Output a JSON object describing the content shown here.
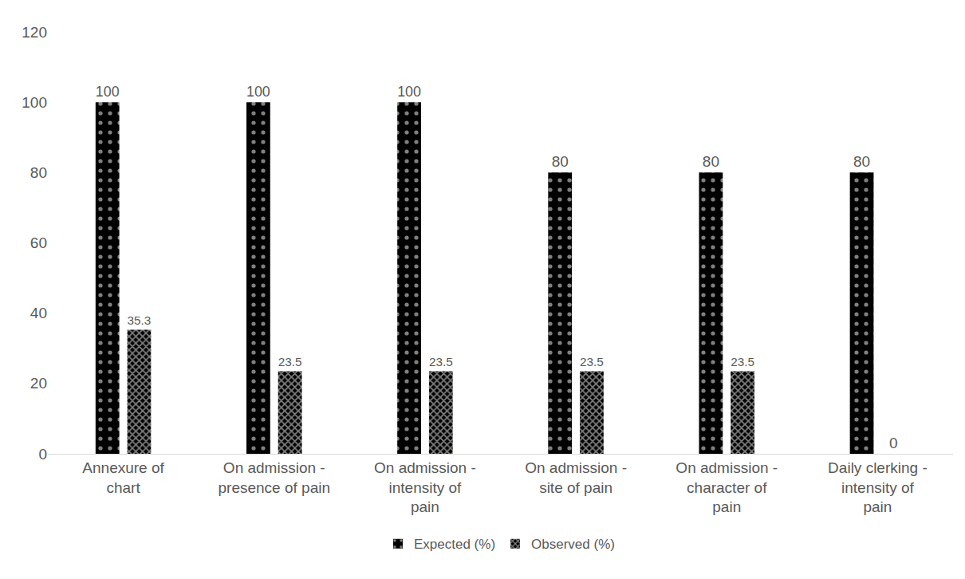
{
  "chart_data": {
    "type": "bar",
    "categories": [
      "Annexure of chart",
      "On admission - presence of pain",
      "On admission - intensity of pain",
      "On admission - site of pain",
      "On admission - character of pain",
      "Daily clerking - intensity of pain"
    ],
    "series": [
      {
        "name": "Expected (%)",
        "color": "#000000",
        "marker": "dots",
        "values": [
          100,
          100,
          100,
          80,
          80,
          80
        ]
      },
      {
        "name": "Observed (%)",
        "color": "#000000",
        "marker": "checkered",
        "values": [
          35.3,
          23.5,
          23.5,
          23.5,
          23.5,
          0
        ]
      }
    ],
    "ylim": [
      0,
      120
    ],
    "yticks": [
      0,
      20,
      40,
      60,
      80,
      100,
      120
    ],
    "grid": false,
    "legend": "bottom",
    "data_labels": true
  }
}
